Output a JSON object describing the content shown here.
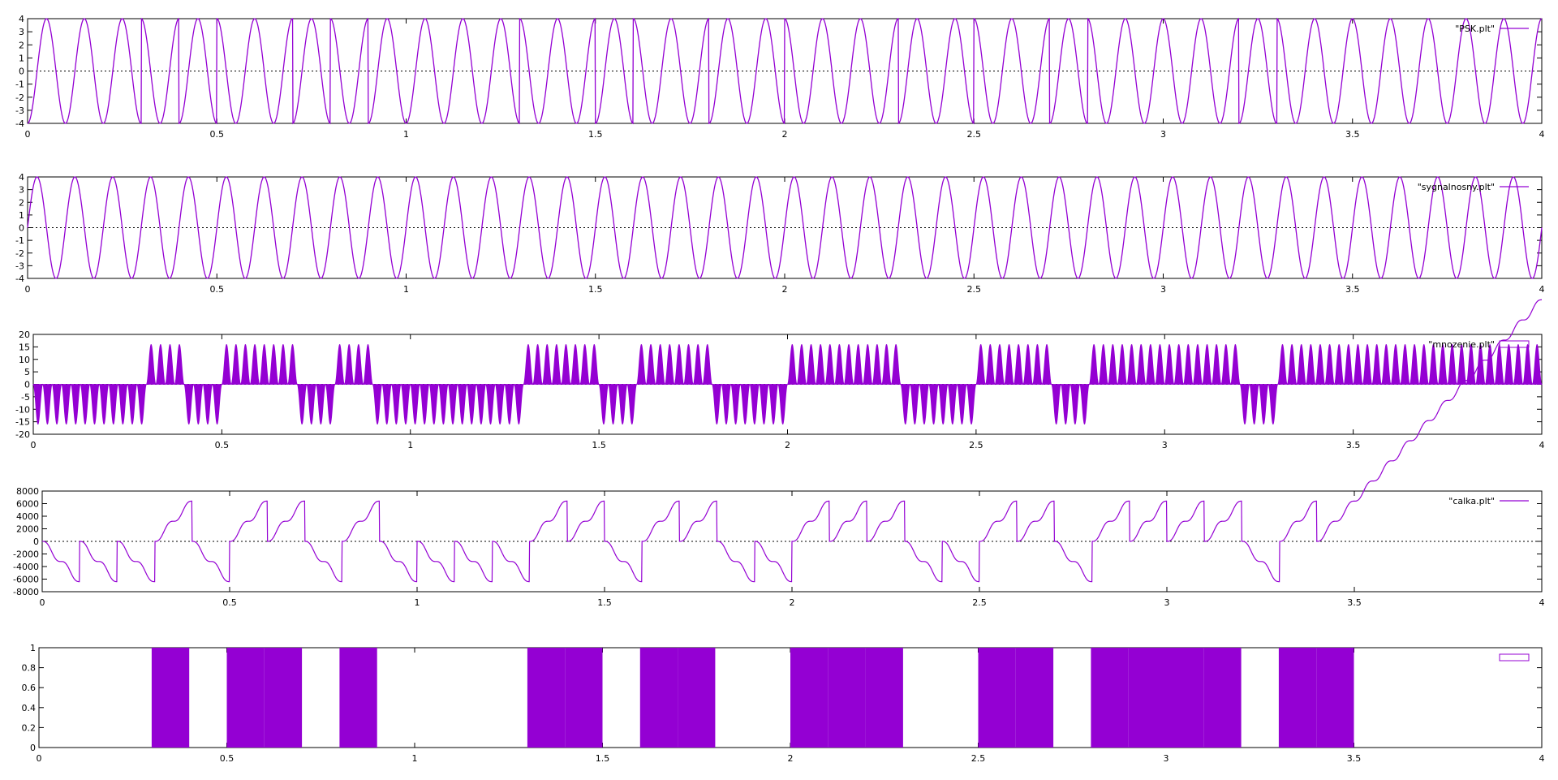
{
  "colors": {
    "series": "#9400d3",
    "axis": "#000000",
    "zero": "#000000"
  },
  "chart_data": [
    {
      "type": "line",
      "shape": "psk",
      "legend": "\"PSK.plt\"",
      "xlim": [
        0,
        4
      ],
      "ylim": [
        -4,
        4
      ],
      "xticks": [
        "0",
        "0.5",
        "1",
        "1.5",
        "2",
        "2.5",
        "3",
        "3.5",
        "4"
      ],
      "yticks": [
        "4",
        "3",
        "2",
        "1",
        "0",
        "-1",
        "-2",
        "-3",
        "-4"
      ],
      "amplitude": 4,
      "carrier_cycles_per_bit": 1,
      "bit_period": 0.1,
      "bits": [
        0,
        0,
        0,
        1,
        0,
        1,
        1,
        0,
        1,
        0,
        0,
        0,
        0,
        1,
        1,
        0,
        1,
        1,
        0,
        0,
        1,
        1,
        1,
        0,
        0,
        1,
        1,
        0,
        1,
        1,
        1,
        1,
        0,
        1,
        1
      ]
    },
    {
      "type": "line",
      "shape": "carrier",
      "legend": "\"sygnalnosny.plt\"",
      "xlim": [
        0,
        4
      ],
      "ylim": [
        -4,
        4
      ],
      "xticks": [
        "0",
        "0.5",
        "1",
        "1.5",
        "2",
        "2.5",
        "3",
        "3.5",
        "4"
      ],
      "yticks": [
        "4",
        "3",
        "2",
        "1",
        "0",
        "-1",
        "-2",
        "-3",
        "-4"
      ],
      "amplitude": 4,
      "cycles": 40
    },
    {
      "type": "area",
      "shape": "product",
      "legend": "\"mnozenie.plt\"",
      "xlim": [
        0,
        4
      ],
      "ylim": [
        -20,
        20
      ],
      "xticks": [
        "0",
        "0.5",
        "1",
        "1.5",
        "2",
        "2.5",
        "3",
        "3.5",
        "4"
      ],
      "yticks": [
        "20",
        "15",
        "10",
        "5",
        "0",
        "-5",
        "-10",
        "-15",
        "-20"
      ],
      "amplitude": 16,
      "bit_period": 0.1,
      "bits": [
        0,
        0,
        0,
        1,
        0,
        1,
        1,
        0,
        1,
        0,
        0,
        0,
        0,
        1,
        1,
        0,
        1,
        1,
        0,
        0,
        1,
        1,
        1,
        0,
        0,
        1,
        1,
        0,
        1,
        1,
        1,
        1,
        0,
        1,
        1
      ]
    },
    {
      "type": "line",
      "shape": "integral",
      "legend": "\"calka.plt\"",
      "xlim": [
        0,
        4
      ],
      "ylim": [
        -8000,
        8000
      ],
      "xticks": [
        "0",
        "0.5",
        "1",
        "1.5",
        "2",
        "2.5",
        "3",
        "3.5",
        "4"
      ],
      "yticks": [
        "8000",
        "6000",
        "4000",
        "2000",
        "0",
        "-2000",
        "-4000",
        "-6000",
        "-8000"
      ],
      "amplitude": 6400,
      "bit_period": 0.1,
      "bits": [
        0,
        0,
        0,
        1,
        0,
        1,
        1,
        0,
        1,
        0,
        0,
        0,
        0,
        1,
        1,
        0,
        1,
        1,
        0,
        0,
        1,
        1,
        1,
        0,
        0,
        1,
        1,
        0,
        1,
        1,
        1,
        1,
        0,
        1,
        1
      ]
    },
    {
      "type": "area",
      "shape": "bits",
      "legend": "",
      "xlim": [
        0,
        4
      ],
      "ylim": [
        0,
        1
      ],
      "xticks": [
        "0",
        "0.5",
        "1",
        "1.5",
        "2",
        "2.5",
        "3",
        "3.5",
        "4"
      ],
      "yticks": [
        "1",
        "0.8",
        "0.6",
        "0.4",
        "0.2",
        "0"
      ],
      "bit_period": 0.1,
      "bits": [
        0,
        0,
        0,
        1,
        0,
        1,
        1,
        0,
        1,
        0,
        0,
        0,
        0,
        1,
        1,
        0,
        1,
        1,
        0,
        0,
        1,
        1,
        1,
        0,
        0,
        1,
        1,
        0,
        1,
        1,
        1,
        1,
        0,
        1,
        1
      ]
    }
  ]
}
